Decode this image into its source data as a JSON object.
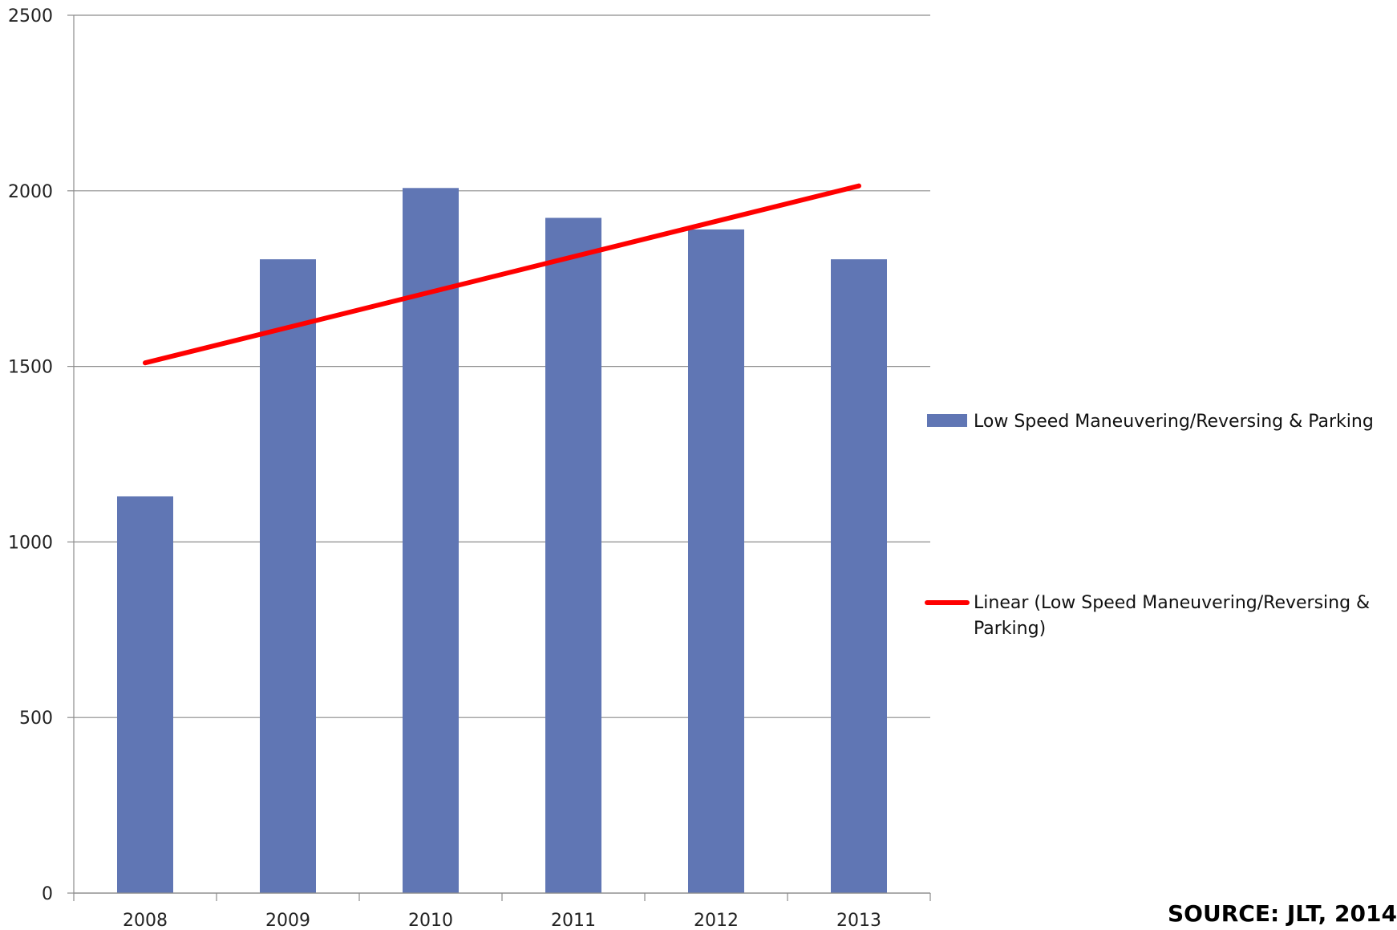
{
  "chart_data": {
    "type": "bar",
    "title": "",
    "xlabel": "",
    "ylabel": "",
    "categories": [
      "2008",
      "2009",
      "2010",
      "2011",
      "2012",
      "2013"
    ],
    "series": [
      {
        "name": "Low Speed Maneuvering/Reversing & Parking",
        "values": [
          1130,
          1805,
          2008,
          1923,
          1890,
          1805
        ],
        "color": "#6076b4"
      }
    ],
    "trendline": {
      "name_line1": "Linear (Low Speed Maneuvering/Reversing &",
      "name_line2": "Parking)",
      "type": "linear",
      "values": [
        1510,
        2014
      ],
      "color": "#ff0000"
    },
    "ylim": [
      0,
      2500
    ],
    "yticks": [
      "0",
      "500",
      "1000",
      "1500",
      "2000",
      "2500"
    ],
    "grid": true,
    "legend_position": "right"
  },
  "source": "SOURCE: JLT, 2014"
}
